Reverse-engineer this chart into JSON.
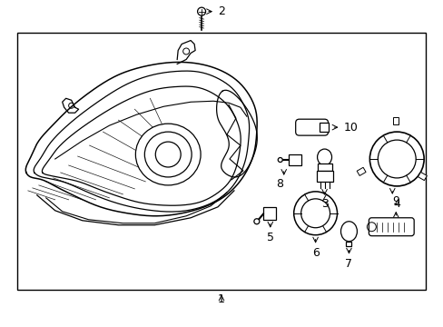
{
  "background_color": "#ffffff",
  "line_color": "#000000",
  "label_1": "1",
  "label_2": "2",
  "label_3": "3",
  "label_4": "4",
  "label_5": "5",
  "label_6": "6",
  "label_7": "7",
  "label_8": "8",
  "label_9": "9",
  "label_10": "10",
  "figsize": [
    4.89,
    3.6
  ],
  "dpi": 100
}
